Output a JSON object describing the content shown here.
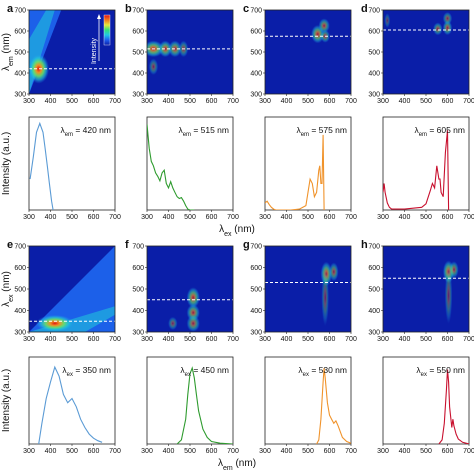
{
  "chart_data": {
    "type": "heatmap",
    "colormap": [
      "#0a1ea8",
      "#1e5ff0",
      "#1fc8e6",
      "#32e07a",
      "#e8e83a",
      "#f07a1e",
      "#e01414"
    ],
    "colorbar": {
      "label": "Intensity",
      "direction": "up"
    },
    "rows": [
      {
        "xlabel": "λex (nm)",
        "xlabel_sub": "ex",
        "ylabel_map": "λem (nm)",
        "ylabel_map_sub": "em",
        "ylabel_spec": "Intensity (a.u.)",
        "x_ticks": [
          "300",
          "400",
          "500",
          "600",
          "700"
        ],
        "y_ticks_map": [
          "300",
          "400",
          "500",
          "600",
          "700"
        ],
        "panels": [
          {
            "letter": "a",
            "annotation": "λem = 420 nm",
            "ann_sub": "em",
            "ann_prefix": "λ",
            "ann_rest": " = 420 nm",
            "cut_value": 420,
            "spec_color": "#5b9bd5",
            "spectrum": {
              "x": [
                305,
                320,
                335,
                350,
                365,
                375,
                385,
                395,
                405,
                412
              ],
              "y": [
                0.35,
                0.6,
                0.88,
                0.98,
                0.88,
                0.7,
                0.5,
                0.3,
                0.1,
                0.0
              ]
            },
            "blobs": [
              {
                "x": 345,
                "y": 420,
                "sx": 22,
                "sy": 32,
                "a": 1.0
              }
            ],
            "diagonal_glow": true,
            "has_colorbar": true
          },
          {
            "letter": "b",
            "annotation": "λem = 515 nm",
            "ann_prefix": "λ",
            "ann_sub": "em",
            "ann_rest": " = 515 nm",
            "cut_value": 515,
            "spec_color": "#2e9b2e",
            "spectrum": {
              "x": [
                300,
                310,
                320,
                330,
                340,
                350,
                360,
                370,
                380,
                390,
                400,
                410,
                420,
                430,
                440,
                450,
                460,
                470,
                480,
                490,
                500,
                510,
                520
              ],
              "y": [
                0.97,
                0.7,
                0.55,
                0.5,
                0.42,
                0.38,
                0.33,
                0.42,
                0.45,
                0.3,
                0.25,
                0.32,
                0.25,
                0.2,
                0.15,
                0.13,
                0.14,
                0.1,
                0.05,
                0.01,
                0.0,
                0.0,
                0.0
              ]
            },
            "blobs": [
              {
                "x": 330,
                "y": 515,
                "sx": 22,
                "sy": 18,
                "a": 0.78
              },
              {
                "x": 385,
                "y": 515,
                "sx": 14,
                "sy": 18,
                "a": 0.7
              },
              {
                "x": 430,
                "y": 515,
                "sx": 14,
                "sy": 18,
                "a": 0.65
              },
              {
                "x": 470,
                "y": 515,
                "sx": 10,
                "sy": 18,
                "a": 0.5
              },
              {
                "x": 330,
                "y": 430,
                "sx": 10,
                "sy": 18,
                "a": 0.45
              }
            ],
            "diagonal_glow": false,
            "has_colorbar": false
          },
          {
            "letter": "c",
            "annotation": "λem = 575 nm",
            "ann_prefix": "λ",
            "ann_sub": "em",
            "ann_rest": " = 575 nm",
            "cut_value": 575,
            "spec_color": "#f0932b",
            "spectrum": {
              "x": [
                300,
                310,
                320,
                330,
                340,
                350,
                380,
                420,
                460,
                490,
                500,
                510,
                520,
                530,
                540,
                550,
                555,
                560,
                565,
                570,
                575
              ],
              "y": [
                0.08,
                0.1,
                0.06,
                0.03,
                0.01,
                0.0,
                0.0,
                0.0,
                0.01,
                0.05,
                0.2,
                0.35,
                0.3,
                0.15,
                0.2,
                0.45,
                0.5,
                0.3,
                0.3,
                0.85,
                0.0
              ]
            },
            "blobs": [
              {
                "x": 545,
                "y": 585,
                "sx": 14,
                "sy": 20,
                "a": 0.7
              },
              {
                "x": 575,
                "y": 625,
                "sx": 12,
                "sy": 16,
                "a": 0.6
              },
              {
                "x": 580,
                "y": 575,
                "sx": 10,
                "sy": 14,
                "a": 0.55
              }
            ],
            "diagonal_glow": false,
            "has_colorbar": false
          },
          {
            "letter": "d",
            "annotation": "λem = 605 nm",
            "ann_prefix": "λ",
            "ann_sub": "em",
            "ann_rest": " = 605 nm",
            "cut_value": 605,
            "spec_color": "#c8102e",
            "spectrum": {
              "x": [
                300,
                305,
                310,
                320,
                330,
                340,
                360,
                400,
                440,
                480,
                500,
                520,
                530,
                540,
                550,
                560,
                565,
                570,
                580,
                590,
                600,
                605
              ],
              "y": [
                0.2,
                0.3,
                0.2,
                0.08,
                0.03,
                0.01,
                0.01,
                0.01,
                0.02,
                0.03,
                0.07,
                0.22,
                0.3,
                0.25,
                0.5,
                0.35,
                0.35,
                0.2,
                0.15,
                0.65,
                0.9,
                0.0
              ]
            },
            "blobs": [
              {
                "x": 600,
                "y": 615,
                "sx": 10,
                "sy": 16,
                "a": 0.6
              },
              {
                "x": 555,
                "y": 610,
                "sx": 10,
                "sy": 14,
                "a": 0.55
              },
              {
                "x": 600,
                "y": 660,
                "sx": 10,
                "sy": 14,
                "a": 0.5
              },
              {
                "x": 320,
                "y": 650,
                "sx": 6,
                "sy": 16,
                "a": 0.35
              }
            ],
            "diagonal_glow": false,
            "has_colorbar": false
          }
        ]
      },
      {
        "xlabel": "λem (nm)",
        "xlabel_sub": "em",
        "ylabel_map": "λex (nm)",
        "ylabel_map_sub": "ex",
        "ylabel_spec": "Intensity (a.u.)",
        "x_ticks": [
          "300",
          "400",
          "500",
          "600",
          "700"
        ],
        "y_ticks_map": [
          "300",
          "400",
          "500",
          "600",
          "700"
        ],
        "panels": [
          {
            "letter": "e",
            "annotation": "λex = 350 nm",
            "ann_prefix": "λ",
            "ann_sub": "ex",
            "ann_rest": " = 350 nm",
            "cut_value": 350,
            "spec_color": "#5b9bd5",
            "spectrum": {
              "x": [
                345,
                360,
                380,
                400,
                420,
                440,
                460,
                480,
                500,
                520,
                540,
                560,
                580,
                600,
                620,
                640
              ],
              "y": [
                0.0,
                0.25,
                0.55,
                0.75,
                0.93,
                0.82,
                0.6,
                0.5,
                0.55,
                0.45,
                0.3,
                0.2,
                0.12,
                0.07,
                0.04,
                0.02
              ]
            },
            "blobs": [
              {
                "x": 420,
                "y": 340,
                "sx": 40,
                "sy": 18,
                "a": 1.0
              }
            ],
            "diagonal_glow": true,
            "has_colorbar": false
          },
          {
            "letter": "f",
            "annotation": "λex = 450 nm",
            "ann_prefix": "λ",
            "ann_sub": "ex",
            "ann_rest": " = 450 nm",
            "cut_value": 450,
            "spec_color": "#2e9b2e",
            "spectrum": {
              "x": [
                440,
                460,
                480,
                490,
                500,
                510,
                520,
                530,
                540,
                560,
                580,
                600,
                640,
                700
              ],
              "y": [
                0.0,
                0.05,
                0.3,
                0.6,
                0.85,
                0.92,
                0.8,
                0.6,
                0.4,
                0.18,
                0.08,
                0.03,
                0.01,
                0.0
              ]
            },
            "blobs": [
              {
                "x": 515,
                "y": 460,
                "sx": 14,
                "sy": 22,
                "a": 0.7
              },
              {
                "x": 515,
                "y": 390,
                "sx": 14,
                "sy": 18,
                "a": 0.65
              },
              {
                "x": 515,
                "y": 340,
                "sx": 14,
                "sy": 18,
                "a": 0.6
              },
              {
                "x": 420,
                "y": 340,
                "sx": 10,
                "sy": 14,
                "a": 0.45
              }
            ],
            "diagonal_glow": false,
            "has_colorbar": false
          },
          {
            "letter": "g",
            "annotation": "λex = 530 nm",
            "ann_prefix": "λ",
            "ann_sub": "ex",
            "ann_rest": " = 530 nm",
            "cut_value": 530,
            "spec_color": "#f0932b",
            "spectrum": {
              "x": [
                540,
                550,
                560,
                570,
                575,
                580,
                590,
                600,
                610,
                620,
                630,
                640,
                660,
                680,
                700
              ],
              "y": [
                0.0,
                0.05,
                0.3,
                0.75,
                0.92,
                0.8,
                0.5,
                0.35,
                0.3,
                0.25,
                0.28,
                0.22,
                0.08,
                0.03,
                0.01
              ]
            },
            "blobs": [
              {
                "x": 585,
                "y": 570,
                "sx": 12,
                "sy": 26,
                "a": 0.7
              },
              {
                "x": 620,
                "y": 580,
                "sx": 10,
                "sy": 20,
                "a": 0.55
              },
              {
                "x": 580,
                "y": 460,
                "sx": 8,
                "sy": 60,
                "a": 0.4
              }
            ],
            "diagonal_glow": false,
            "has_colorbar": false
          },
          {
            "letter": "h",
            "annotation": "λex = 550 nm",
            "ann_prefix": "λ",
            "ann_sub": "ex",
            "ann_rest": " = 550 nm",
            "cut_value": 550,
            "spec_color": "#c8102e",
            "spectrum": {
              "x": [
                560,
                575,
                585,
                595,
                600,
                605,
                610,
                620,
                625,
                630,
                640,
                650,
                670,
                700
              ],
              "y": [
                0.0,
                0.05,
                0.25,
                0.65,
                0.9,
                0.75,
                0.45,
                0.2,
                0.3,
                0.22,
                0.12,
                0.06,
                0.02,
                0.0
              ]
            },
            "blobs": [
              {
                "x": 605,
                "y": 580,
                "sx": 12,
                "sy": 24,
                "a": 0.7
              },
              {
                "x": 630,
                "y": 590,
                "sx": 10,
                "sy": 18,
                "a": 0.55
              },
              {
                "x": 605,
                "y": 470,
                "sx": 8,
                "sy": 60,
                "a": 0.4
              }
            ],
            "diagonal_glow": false,
            "has_colorbar": false
          }
        ]
      }
    ],
    "xlim": [
      300,
      700
    ],
    "ylim_map": [
      300,
      700
    ]
  }
}
